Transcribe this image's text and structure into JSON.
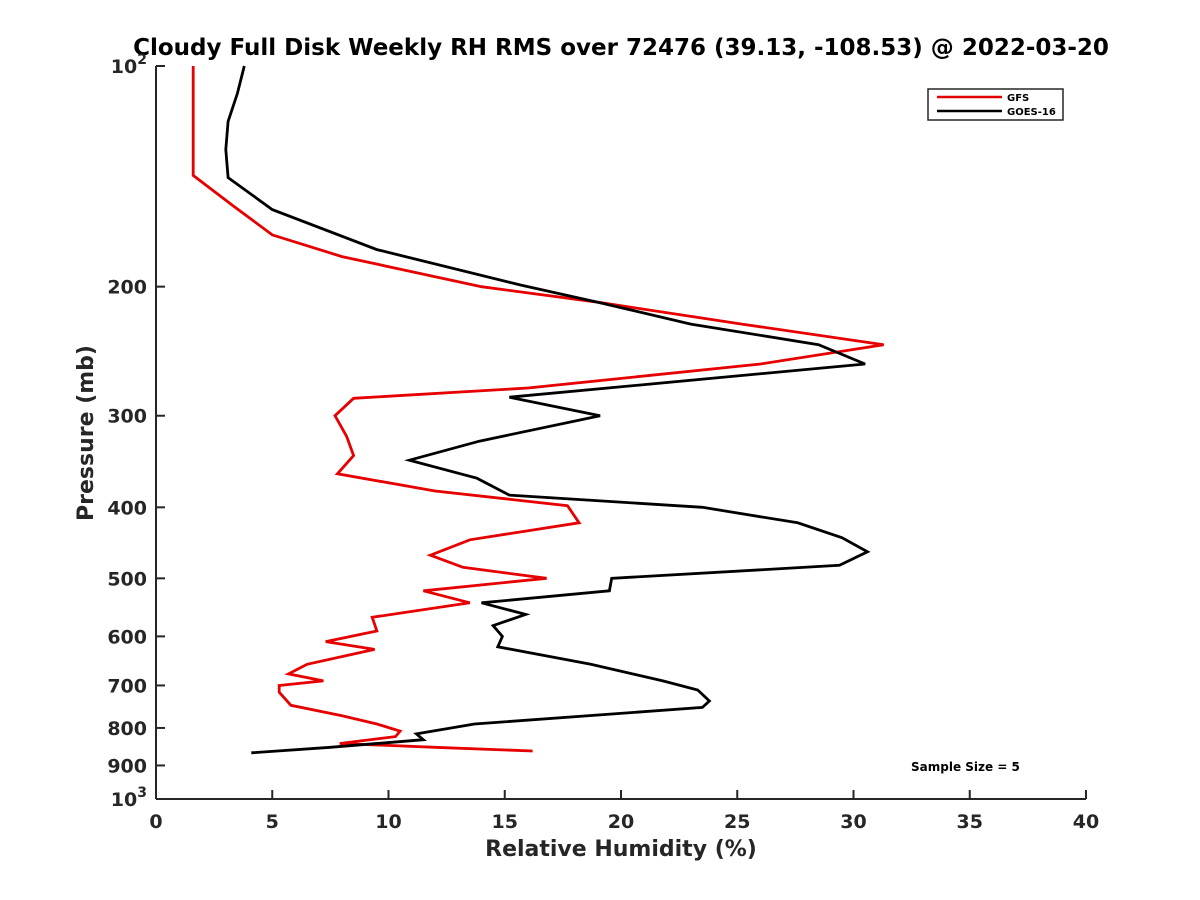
{
  "chart_data": {
    "type": "line",
    "title": "Cloudy Full Disk Weekly RH RMS over 72476 (39.13, -108.53) @ 2022-03-20",
    "xlabel": "Relative Humidity (%)",
    "ylabel": "Pressure (mb)",
    "xlim": [
      0,
      40
    ],
    "ylim": [
      100,
      1000
    ],
    "y_scale": "log",
    "y_reversed": true,
    "x_ticks": [
      0,
      5,
      10,
      15,
      20,
      25,
      30,
      35,
      40
    ],
    "x_tick_labels": [
      "0",
      "5",
      "10",
      "15",
      "20",
      "25",
      "30",
      "35",
      "40"
    ],
    "y_ticks": [
      100,
      200,
      300,
      400,
      500,
      600,
      700,
      800,
      900,
      1000
    ],
    "y_tick_labels": [
      {
        "base": "10",
        "exp": "2"
      },
      {
        "base": "200"
      },
      {
        "base": "300"
      },
      {
        "base": "400"
      },
      {
        "base": "500"
      },
      {
        "base": "600"
      },
      {
        "base": "700"
      },
      {
        "base": "800"
      },
      {
        "base": "900"
      },
      {
        "base": "10",
        "exp": "3"
      }
    ],
    "grid": false,
    "legend_position": "top-right",
    "annotation": "Sample Size = 5",
    "series": [
      {
        "name": "GFS",
        "color": "#e60000",
        "x": [
          1.6,
          1.6,
          1.6,
          3.3,
          5.0,
          8.0,
          14.0,
          19.0,
          25.2,
          31.3,
          26.0,
          16.0,
          8.5,
          7.7,
          8.2,
          8.5,
          7.8,
          12.0,
          17.7,
          18.2,
          13.5,
          11.8,
          13.2,
          16.8,
          11.5,
          13.5,
          9.3,
          9.5,
          7.3,
          9.4,
          6.5,
          5.7,
          7.2,
          5.3,
          5.3,
          5.8,
          8.0,
          9.5,
          10.5,
          10.3,
          7.9,
          12.0,
          16.2
        ],
        "y": [
          100,
          130,
          141,
          155,
          170,
          182,
          200,
          210,
          225,
          240,
          255,
          275,
          284,
          300,
          320,
          340,
          360,
          380,
          398,
          420,
          443,
          465,
          483,
          500,
          520,
          540,
          565,
          590,
          610,
          625,
          655,
          675,
          690,
          700,
          715,
          745,
          770,
          790,
          808,
          822,
          840,
          850,
          860
        ]
      },
      {
        "name": "GOES-16",
        "color": "#000000",
        "x": [
          3.8,
          3.5,
          3.1,
          3.0,
          3.1,
          5.0,
          9.5,
          15.7,
          19.0,
          23.0,
          28.5,
          30.5,
          15.2,
          19.1,
          13.9,
          10.9,
          13.8,
          15.2,
          23.5,
          27.6,
          29.5,
          30.6,
          29.4,
          19.6,
          19.5,
          14.0,
          15.9,
          14.5,
          14.9,
          14.7,
          18.7,
          21.8,
          23.3,
          23.8,
          23.5,
          13.7,
          11.2,
          11.5,
          7.5,
          4.1
        ],
        "y": [
          100,
          109,
          119,
          130,
          142,
          157,
          178,
          199,
          210,
          225,
          240,
          255,
          283,
          300,
          325,
          345,
          365,
          385,
          400,
          420,
          440,
          460,
          480,
          500,
          520,
          540,
          560,
          580,
          600,
          620,
          655,
          690,
          710,
          735,
          750,
          790,
          815,
          830,
          850,
          865
        ]
      }
    ]
  }
}
